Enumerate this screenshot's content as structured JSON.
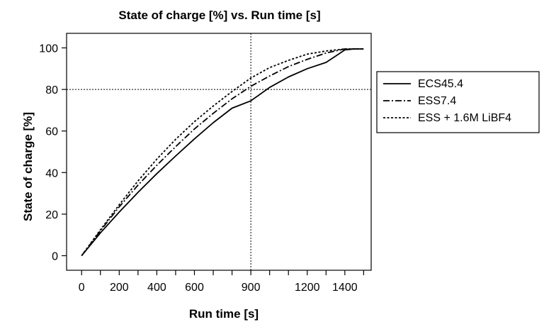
{
  "chart_data": {
    "type": "line",
    "title": "State of charge [%] vs. Run time [s]",
    "xlabel": "Run time [s]",
    "ylabel": "State of charge [%]",
    "xlim": [
      -80,
      1540
    ],
    "ylim": [
      -7,
      107
    ],
    "xticks_labeled": [
      0,
      200,
      400,
      600,
      900,
      1200,
      1400
    ],
    "xticks_minor": [
      100,
      300,
      500,
      700,
      800,
      1000,
      1100,
      1300,
      1500
    ],
    "yticks": [
      0,
      20,
      40,
      60,
      80,
      100
    ],
    "reference_lines": {
      "x": 900,
      "y": 80,
      "style": "dotted"
    },
    "grid": false,
    "legend_position": "right",
    "series": [
      {
        "name": "ECS45.4",
        "dash": "solid",
        "x": [
          0,
          100,
          200,
          300,
          400,
          500,
          600,
          700,
          800,
          900,
          1000,
          1100,
          1200,
          1300,
          1350,
          1400,
          1450,
          1500
        ],
        "y": [
          0,
          11,
          21,
          30.5,
          39.5,
          48,
          56.2,
          64,
          71,
          74.5,
          81,
          86,
          90,
          93,
          96,
          99,
          99.5,
          99.5
        ]
      },
      {
        "name": "ESS7.4",
        "dash": "dashdot",
        "x": [
          0,
          100,
          200,
          300,
          400,
          500,
          600,
          700,
          800,
          900,
          1000,
          1100,
          1200,
          1300,
          1400,
          1500
        ],
        "y": [
          0,
          12,
          23.5,
          34,
          43.5,
          52.5,
          61,
          68.5,
          75.5,
          81.5,
          86.5,
          91,
          94.5,
          97.5,
          99.5,
          99.5
        ]
      },
      {
        "name": "ESS + 1.6M LiBF4",
        "dash": "dotted",
        "x": [
          0,
          100,
          200,
          300,
          400,
          500,
          600,
          700,
          800,
          900,
          1000,
          1100,
          1200,
          1300,
          1400,
          1500
        ],
        "y": [
          0,
          12.5,
          24.5,
          36,
          46.5,
          56,
          64.5,
          72,
          79,
          85.5,
          90.5,
          94,
          97,
          98.5,
          99.5,
          99.5
        ]
      }
    ]
  }
}
